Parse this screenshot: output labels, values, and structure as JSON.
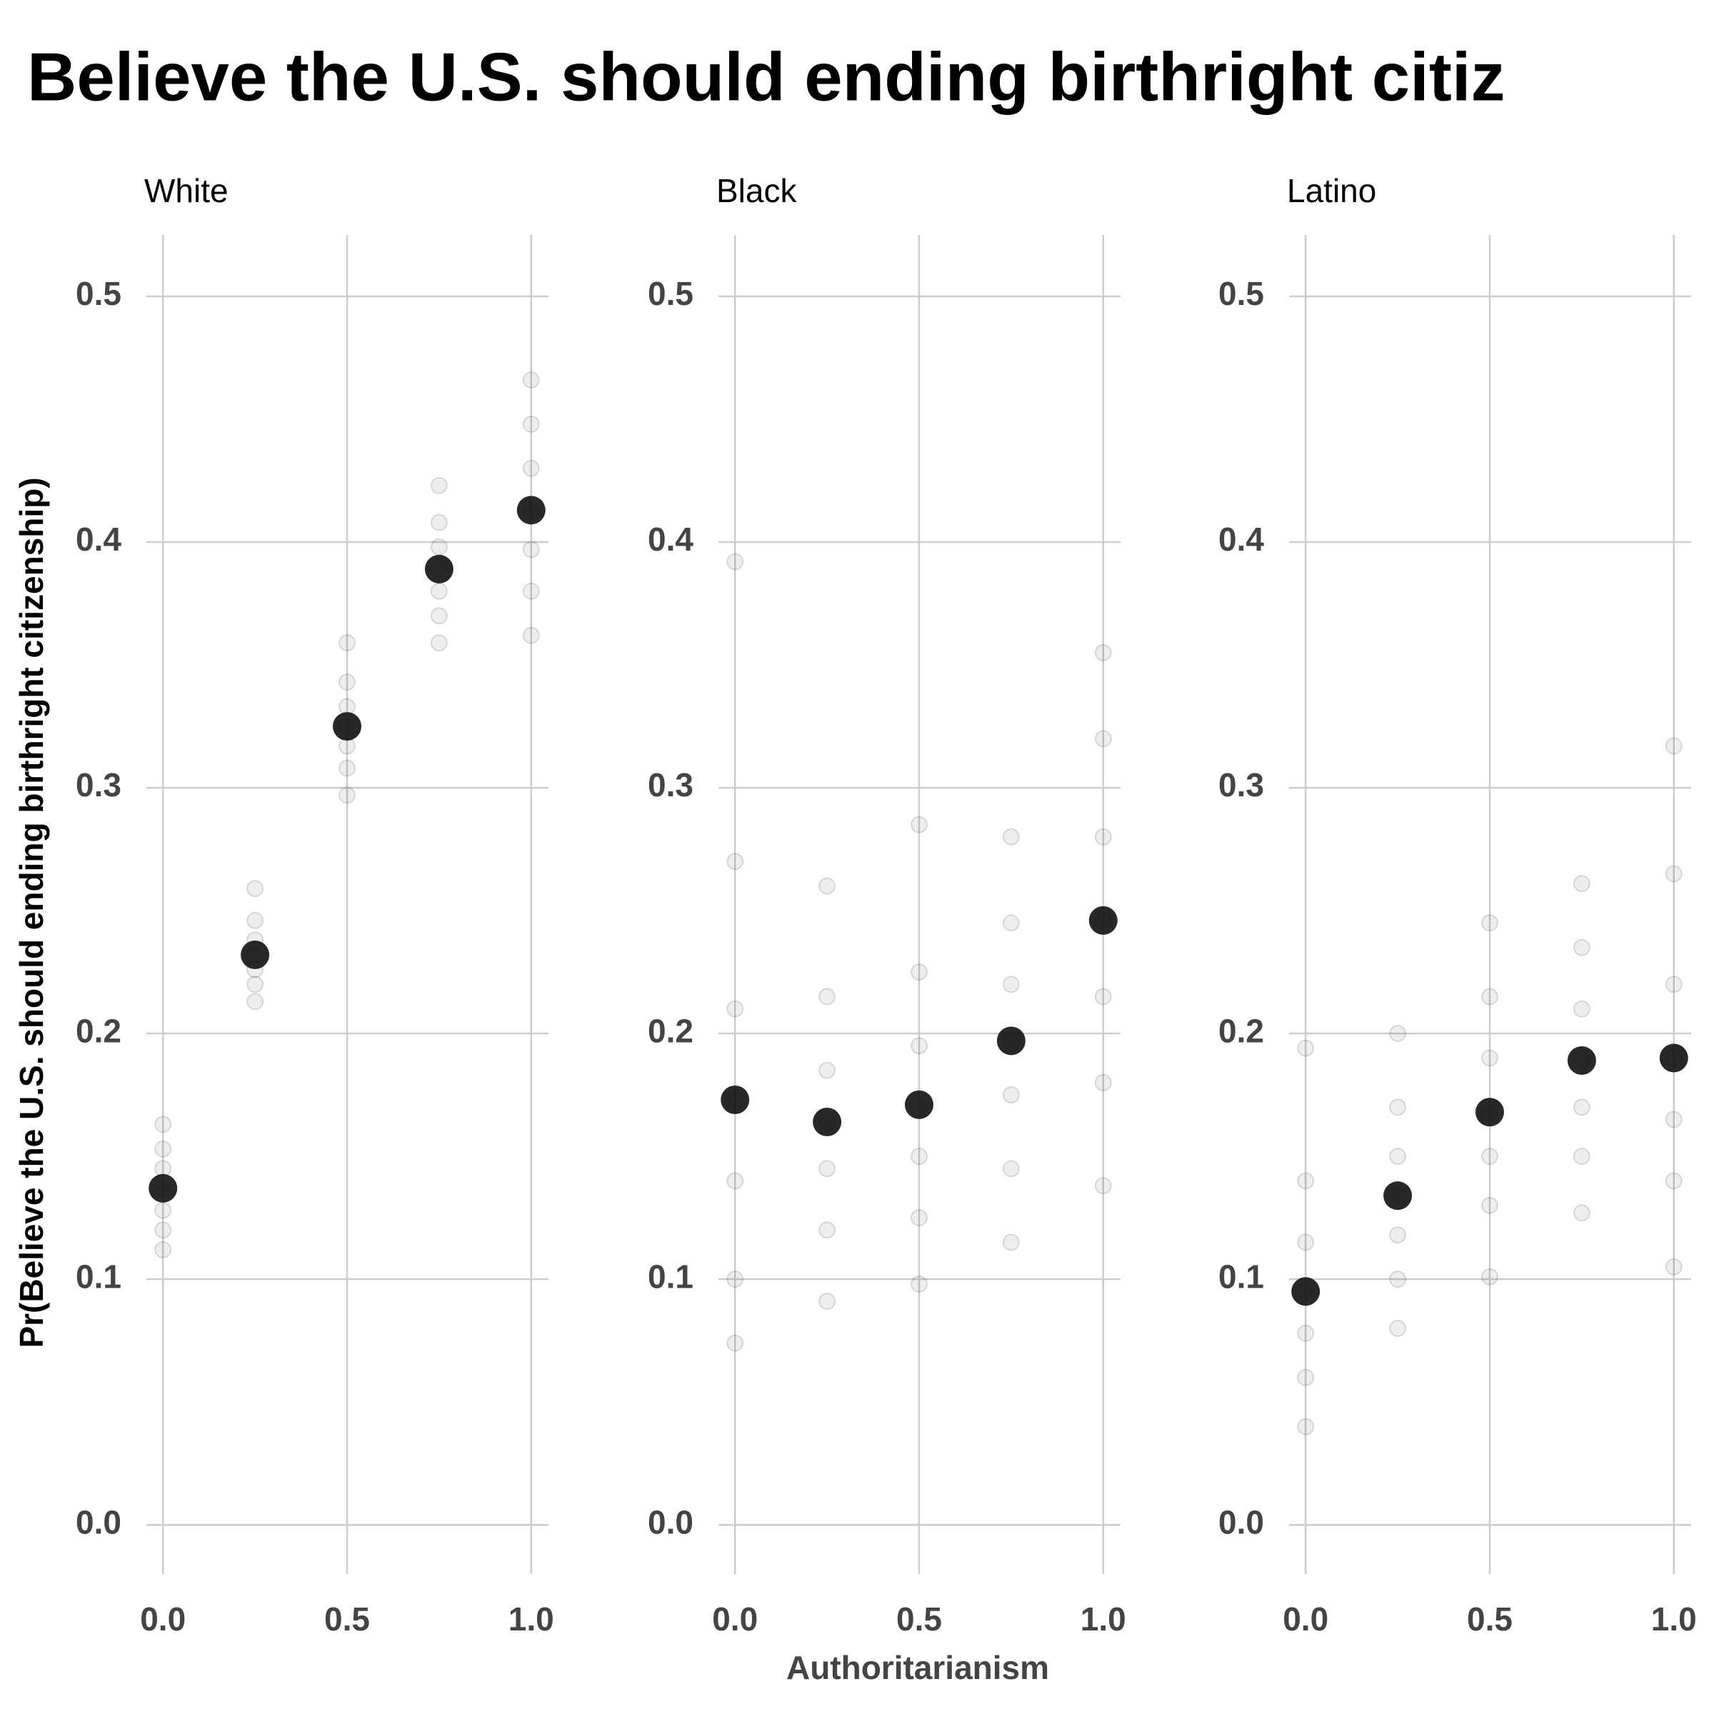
{
  "figure": {
    "title": "Believe the U.S. should ending birthright citiz",
    "x_label": "Authoritarianism",
    "y_label": "Pr(Believe the U.S. should ending birthright citizenship)"
  },
  "chart_data": [
    {
      "type": "scatter",
      "subtitle": "White",
      "color": "#111111",
      "point_alpha": 0.07,
      "x": [
        0,
        0.25,
        0.5,
        0.75,
        1
      ],
      "values": [
        0.137,
        0.232,
        0.325,
        0.389,
        0.413
      ],
      "points": [
        [
          0.112,
          0.12,
          0.128,
          0.137,
          0.145,
          0.153,
          0.163
        ],
        [
          0.213,
          0.22,
          0.226,
          0.232,
          0.238,
          0.246,
          0.259
        ],
        [
          0.297,
          0.308,
          0.317,
          0.325,
          0.333,
          0.343,
          0.359
        ],
        [
          0.359,
          0.37,
          0.38,
          0.389,
          0.398,
          0.408,
          0.423
        ],
        [
          0.362,
          0.38,
          0.397,
          0.413,
          0.43,
          0.448,
          0.466
        ]
      ],
      "xlim": [
        -0.045,
        1.047
      ],
      "ylim": [
        -0.02,
        0.525
      ],
      "xticks": [
        {
          "value": 0,
          "label": "0.0"
        },
        0.5,
        {
          "value": 1,
          "label": "1.0"
        }
      ],
      "yticks": [
        {
          "value": 0,
          "label": "0.0"
        },
        0.1,
        0.2,
        0.3,
        0.4,
        0.5
      ],
      "grid": true
    },
    {
      "type": "scatter",
      "subtitle": "Black",
      "color": "#111111",
      "point_alpha": 0.07,
      "x": [
        0,
        0.25,
        0.5,
        0.75,
        1
      ],
      "values": [
        0.173,
        0.164,
        0.171,
        0.197,
        0.246
      ],
      "points": [
        [
          0.074,
          0.1,
          0.14,
          0.173,
          0.21,
          0.27,
          0.392
        ],
        [
          0.091,
          0.12,
          0.145,
          0.164,
          0.185,
          0.215,
          0.26
        ],
        [
          0.098,
          0.125,
          0.15,
          0.171,
          0.195,
          0.225,
          0.285
        ],
        [
          0.115,
          0.145,
          0.175,
          0.197,
          0.22,
          0.245,
          0.28
        ],
        [
          0.138,
          0.18,
          0.215,
          0.246,
          0.28,
          0.32,
          0.355
        ]
      ],
      "xlim": [
        -0.045,
        1.047
      ],
      "ylim": [
        -0.02,
        0.525
      ],
      "xticks": [
        {
          "value": 0,
          "label": "0.0"
        },
        0.5,
        {
          "value": 1,
          "label": "1.0"
        }
      ],
      "yticks": [
        {
          "value": 0,
          "label": "0.0"
        },
        0.1,
        0.2,
        0.3,
        0.4,
        0.5
      ],
      "grid": true
    },
    {
      "type": "scatter",
      "subtitle": "Latino",
      "color": "#111111",
      "point_alpha": 0.07,
      "x": [
        0,
        0.25,
        0.5,
        0.75,
        1
      ],
      "values": [
        0.095,
        0.134,
        0.168,
        0.189,
        0.19
      ],
      "points": [
        [
          0.04,
          0.06,
          0.078,
          0.095,
          0.115,
          0.14,
          0.194
        ],
        [
          0.08,
          0.1,
          0.118,
          0.134,
          0.15,
          0.17,
          0.2
        ],
        [
          0.101,
          0.13,
          0.15,
          0.168,
          0.19,
          0.215,
          0.245
        ],
        [
          0.127,
          0.15,
          0.17,
          0.189,
          0.21,
          0.235,
          0.261
        ],
        [
          0.105,
          0.14,
          0.165,
          0.19,
          0.22,
          0.265,
          0.317
        ]
      ],
      "xlim": [
        -0.045,
        1.047
      ],
      "ylim": [
        -0.02,
        0.525
      ],
      "xticks": [
        {
          "value": 0,
          "label": "0.0"
        },
        0.5,
        {
          "value": 1,
          "label": "1.0"
        }
      ],
      "yticks": [
        {
          "value": 0,
          "label": "0.0"
        },
        0.1,
        0.2,
        0.3,
        0.4,
        0.5
      ],
      "grid": true
    }
  ]
}
